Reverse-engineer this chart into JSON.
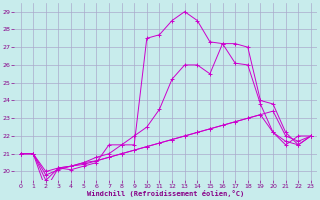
{
  "background_color": "#c8ecec",
  "grid_color": "#aaaacc",
  "line_color": "#cc00cc",
  "marker": "+",
  "xlabel": "Windchill (Refroidissement éolien,°C)",
  "xlabel_color": "#880088",
  "tick_color": "#880088",
  "xlim": [
    -0.5,
    23.5
  ],
  "ylim": [
    19.5,
    29.5
  ],
  "yticks": [
    20,
    21,
    22,
    23,
    24,
    25,
    26,
    27,
    28,
    29
  ],
  "xticks": [
    0,
    1,
    2,
    3,
    4,
    5,
    6,
    7,
    8,
    9,
    10,
    11,
    12,
    13,
    14,
    15,
    16,
    17,
    18,
    19,
    20,
    21,
    22,
    23
  ],
  "lines": [
    {
      "x": [
        0,
        1,
        2,
        3,
        4,
        5,
        6,
        7,
        8,
        9,
        10,
        11,
        12,
        13,
        14,
        15,
        16,
        17,
        18,
        19,
        20,
        21,
        22,
        23
      ],
      "y": [
        21.0,
        21.0,
        19.0,
        20.2,
        20.1,
        20.3,
        20.5,
        21.5,
        21.5,
        21.5,
        27.5,
        27.7,
        28.5,
        29.0,
        28.5,
        27.3,
        27.2,
        26.1,
        26.0,
        23.8,
        22.2,
        21.5,
        22.0,
        22.0
      ]
    },
    {
      "x": [
        0,
        1,
        2,
        3,
        4,
        5,
        6,
        7,
        8,
        9,
        10,
        11,
        12,
        13,
        14,
        15,
        16,
        17,
        18,
        19,
        20,
        21,
        22,
        23
      ],
      "y": [
        21.0,
        21.0,
        19.5,
        20.2,
        20.3,
        20.5,
        20.8,
        21.0,
        21.5,
        22.0,
        22.5,
        23.5,
        25.2,
        26.0,
        26.0,
        25.5,
        27.2,
        27.2,
        27.0,
        24.0,
        23.8,
        22.2,
        21.5,
        22.0
      ]
    },
    {
      "x": [
        0,
        1,
        2,
        3,
        4,
        5,
        6,
        7,
        8,
        9,
        10,
        11,
        12,
        13,
        14,
        15,
        16,
        17,
        18,
        19,
        20,
        21,
        22,
        23
      ],
      "y": [
        21.0,
        21.0,
        19.8,
        20.1,
        20.3,
        20.5,
        20.6,
        20.8,
        21.0,
        21.2,
        21.4,
        21.6,
        21.8,
        22.0,
        22.2,
        22.4,
        22.6,
        22.8,
        23.0,
        23.2,
        22.2,
        21.7,
        21.5,
        22.0
      ]
    },
    {
      "x": [
        0,
        1,
        2,
        3,
        4,
        5,
        6,
        7,
        8,
        9,
        10,
        11,
        12,
        13,
        14,
        15,
        16,
        17,
        18,
        19,
        20,
        21,
        22,
        23
      ],
      "y": [
        21.0,
        21.0,
        20.0,
        20.2,
        20.3,
        20.4,
        20.6,
        20.8,
        21.0,
        21.2,
        21.4,
        21.6,
        21.8,
        22.0,
        22.2,
        22.4,
        22.6,
        22.8,
        23.0,
        23.2,
        23.4,
        22.0,
        21.7,
        22.0
      ]
    }
  ]
}
